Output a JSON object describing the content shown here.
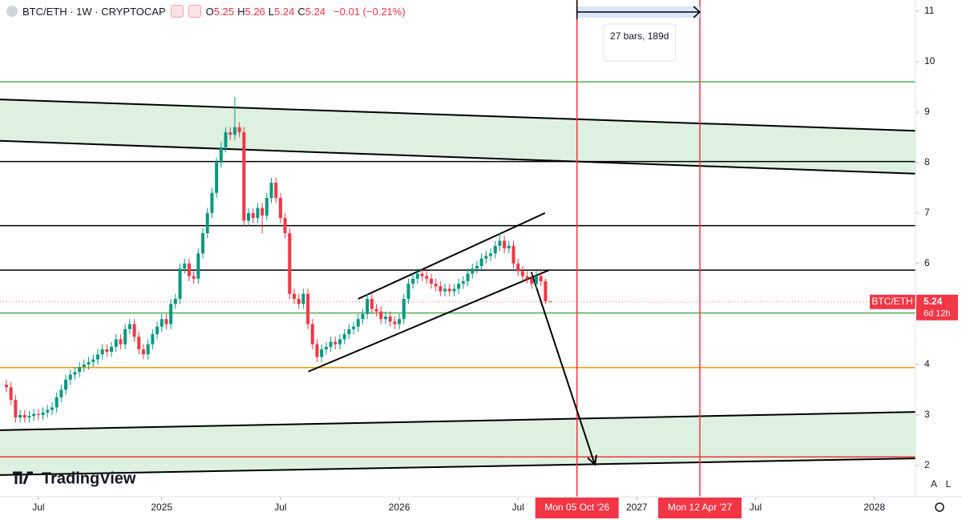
{
  "header": {
    "symbol": "BTC/ETH · 1W · CRYPTOCAP",
    "ohlc_labels": [
      "O",
      "H",
      "L",
      "C"
    ],
    "change": "−0.01 (−0.21%)"
  },
  "chart_data": {
    "type": "candlestick",
    "candles": [
      [
        3.6,
        3.7,
        3.45,
        3.55
      ],
      [
        3.55,
        3.65,
        3.2,
        3.3
      ],
      [
        3.3,
        3.4,
        2.85,
        2.95
      ],
      [
        2.95,
        3.1,
        2.85,
        3.0
      ],
      [
        3.0,
        3.1,
        2.85,
        2.95
      ],
      [
        2.95,
        3.08,
        2.85,
        2.98
      ],
      [
        2.98,
        3.12,
        2.88,
        3.02
      ],
      [
        3.02,
        3.12,
        2.9,
        3.0
      ],
      [
        3.0,
        3.15,
        2.9,
        3.05
      ],
      [
        3.05,
        3.2,
        2.95,
        3.1
      ],
      [
        3.1,
        3.25,
        3.0,
        3.15
      ],
      [
        3.15,
        3.45,
        3.05,
        3.35
      ],
      [
        3.35,
        3.6,
        3.25,
        3.5
      ],
      [
        3.5,
        3.8,
        3.4,
        3.7
      ],
      [
        3.7,
        3.9,
        3.6,
        3.8
      ],
      [
        3.8,
        3.95,
        3.7,
        3.85
      ],
      [
        3.85,
        4.05,
        3.75,
        3.95
      ],
      [
        3.95,
        4.1,
        3.85,
        4.0
      ],
      [
        4.0,
        4.15,
        3.9,
        4.05
      ],
      [
        4.05,
        4.2,
        3.95,
        4.1
      ],
      [
        4.1,
        4.3,
        4.0,
        4.2
      ],
      [
        4.2,
        4.4,
        4.1,
        4.3
      ],
      [
        4.3,
        4.4,
        4.15,
        4.25
      ],
      [
        4.25,
        4.45,
        4.15,
        4.35
      ],
      [
        4.35,
        4.6,
        4.25,
        4.5
      ],
      [
        4.5,
        4.6,
        4.3,
        4.4
      ],
      [
        4.4,
        4.8,
        4.3,
        4.7
      ],
      [
        4.7,
        4.9,
        4.6,
        4.8
      ],
      [
        4.8,
        4.9,
        4.45,
        4.55
      ],
      [
        4.55,
        4.65,
        4.2,
        4.3
      ],
      [
        4.3,
        4.4,
        4.1,
        4.2
      ],
      [
        4.2,
        4.5,
        4.1,
        4.4
      ],
      [
        4.4,
        4.7,
        4.3,
        4.6
      ],
      [
        4.6,
        4.85,
        4.5,
        4.75
      ],
      [
        4.75,
        5.0,
        4.65,
        4.9
      ],
      [
        4.9,
        5.0,
        4.7,
        4.8
      ],
      [
        4.8,
        5.3,
        4.7,
        5.2
      ],
      [
        5.2,
        5.4,
        5.1,
        5.3
      ],
      [
        5.3,
        6.0,
        5.2,
        5.9
      ],
      [
        5.9,
        6.1,
        5.8,
        6.0
      ],
      [
        6.0,
        6.1,
        5.65,
        5.75
      ],
      [
        5.75,
        5.85,
        5.6,
        5.7
      ],
      [
        5.7,
        6.3,
        5.6,
        6.2
      ],
      [
        6.2,
        6.7,
        6.1,
        6.6
      ],
      [
        6.6,
        7.1,
        6.5,
        7.0
      ],
      [
        7.0,
        7.5,
        6.9,
        7.4
      ],
      [
        7.4,
        8.1,
        7.3,
        8.0
      ],
      [
        8.0,
        8.4,
        7.9,
        8.3
      ],
      [
        8.3,
        8.7,
        8.2,
        8.6
      ],
      [
        8.6,
        8.7,
        8.45,
        8.55
      ],
      [
        8.55,
        9.3,
        8.45,
        8.7
      ],
      [
        8.7,
        8.8,
        8.5,
        8.6
      ],
      [
        8.6,
        8.7,
        6.75,
        6.85
      ],
      [
        6.85,
        7.1,
        6.75,
        7.0
      ],
      [
        7.0,
        7.1,
        6.8,
        6.9
      ],
      [
        6.9,
        7.2,
        6.8,
        7.1
      ],
      [
        7.1,
        7.2,
        6.6,
        6.95
      ],
      [
        6.95,
        7.4,
        6.85,
        7.3
      ],
      [
        7.3,
        7.7,
        7.2,
        7.6
      ],
      [
        7.6,
        7.7,
        7.2,
        7.3
      ],
      [
        7.3,
        7.4,
        6.8,
        6.9
      ],
      [
        6.9,
        7.0,
        6.5,
        6.6
      ],
      [
        6.6,
        6.7,
        5.3,
        5.4
      ],
      [
        5.4,
        5.5,
        5.2,
        5.3
      ],
      [
        5.3,
        5.4,
        5.1,
        5.2
      ],
      [
        5.2,
        5.5,
        5.1,
        5.4
      ],
      [
        5.4,
        5.5,
        4.7,
        4.8
      ],
      [
        4.8,
        4.9,
        4.3,
        4.4
      ],
      [
        4.4,
        4.5,
        4.05,
        4.15
      ],
      [
        4.15,
        4.4,
        4.05,
        4.3
      ],
      [
        4.3,
        4.45,
        4.2,
        4.35
      ],
      [
        4.35,
        4.55,
        4.25,
        4.45
      ],
      [
        4.45,
        4.55,
        4.3,
        4.4
      ],
      [
        4.4,
        4.6,
        4.3,
        4.5
      ],
      [
        4.5,
        4.7,
        4.4,
        4.6
      ],
      [
        4.6,
        4.8,
        4.5,
        4.7
      ],
      [
        4.7,
        4.85,
        4.6,
        4.75
      ],
      [
        4.75,
        5.0,
        4.65,
        4.9
      ],
      [
        4.9,
        5.1,
        4.8,
        5.0
      ],
      [
        5.0,
        5.4,
        4.9,
        5.3
      ],
      [
        5.3,
        5.4,
        5.0,
        5.1
      ],
      [
        5.1,
        5.2,
        4.95,
        5.05
      ],
      [
        5.05,
        5.15,
        4.8,
        4.9
      ],
      [
        4.9,
        5.05,
        4.8,
        4.95
      ],
      [
        4.95,
        5.05,
        4.75,
        4.85
      ],
      [
        4.85,
        4.95,
        4.7,
        4.8
      ],
      [
        4.8,
        5.0,
        4.7,
        4.9
      ],
      [
        4.9,
        5.4,
        4.8,
        5.3
      ],
      [
        5.3,
        5.7,
        5.2,
        5.6
      ],
      [
        5.6,
        5.8,
        5.5,
        5.7
      ],
      [
        5.7,
        5.9,
        5.6,
        5.8
      ],
      [
        5.8,
        5.9,
        5.65,
        5.75
      ],
      [
        5.75,
        5.85,
        5.6,
        5.7
      ],
      [
        5.7,
        5.8,
        5.5,
        5.6
      ],
      [
        5.6,
        5.7,
        5.45,
        5.55
      ],
      [
        5.55,
        5.65,
        5.35,
        5.45
      ],
      [
        5.45,
        5.6,
        5.35,
        5.5
      ],
      [
        5.5,
        5.6,
        5.35,
        5.45
      ],
      [
        5.45,
        5.6,
        5.35,
        5.5
      ],
      [
        5.5,
        5.7,
        5.4,
        5.6
      ],
      [
        5.6,
        5.75,
        5.5,
        5.65
      ],
      [
        5.65,
        5.9,
        5.55,
        5.8
      ],
      [
        5.8,
        6.0,
        5.7,
        5.9
      ],
      [
        5.9,
        6.05,
        5.8,
        5.95
      ],
      [
        5.95,
        6.2,
        5.85,
        6.1
      ],
      [
        6.1,
        6.25,
        6.0,
        6.15
      ],
      [
        6.15,
        6.3,
        6.05,
        6.2
      ],
      [
        6.2,
        6.45,
        6.1,
        6.35
      ],
      [
        6.35,
        6.6,
        6.25,
        6.45
      ],
      [
        6.45,
        6.55,
        6.2,
        6.3
      ],
      [
        6.3,
        6.45,
        6.2,
        6.35
      ],
      [
        6.35,
        6.45,
        5.9,
        6.0
      ],
      [
        6.0,
        6.1,
        5.75,
        5.85
      ],
      [
        5.85,
        5.95,
        5.65,
        5.75
      ],
      [
        5.75,
        5.85,
        5.6,
        5.7
      ],
      [
        5.7,
        5.8,
        5.5,
        5.6
      ],
      [
        5.6,
        5.85,
        5.5,
        5.75
      ],
      [
        5.75,
        5.85,
        5.55,
        5.65
      ],
      [
        5.65,
        5.7,
        5.2,
        5.25
      ],
      [
        5.25,
        5.26,
        5.24,
        5.24
      ]
    ],
    "up_color": "#089981",
    "down_color": "#f23645",
    "xlim": [
      -1.4,
      199
    ],
    "ylim": [
      1.38,
      11.22
    ],
    "xticks": [
      {
        "value": 7,
        "label": "Jul"
      },
      {
        "value": 34,
        "label": "2025"
      },
      {
        "value": 60,
        "label": "Jul"
      },
      {
        "value": 86,
        "label": "2026"
      },
      {
        "value": 112,
        "label": "Jul"
      },
      {
        "value": 138,
        "label": "2027"
      },
      {
        "value": 164,
        "label": "Jul"
      },
      {
        "value": 190,
        "label": "2028"
      }
    ],
    "yticks": [
      2,
      3,
      4,
      6,
      7,
      8,
      9,
      10,
      11
    ],
    "last_price": {
      "name": "BTC/ETH",
      "value": 5.24,
      "countdown": "6d 12h",
      "color": "#f23645"
    },
    "hlines": [
      {
        "value": 9.6,
        "color": "#4caf50"
      },
      {
        "value": 8.02,
        "color": "#000000"
      },
      {
        "value": 6.75,
        "color": "#000000"
      },
      {
        "value": 5.87,
        "color": "#000000"
      },
      {
        "value": 5.02,
        "color": "#4caf50"
      },
      {
        "value": 3.94,
        "color": "#ff9800"
      },
      {
        "value": 2.17,
        "color": "#e53935"
      }
    ],
    "bands": [
      {
        "x": [
          -1.4,
          199
        ],
        "top": [
          9.25,
          8.63
        ],
        "bottom": [
          8.43,
          7.78
        ],
        "fill": "#c8e6c9"
      },
      {
        "x": [
          -1.4,
          199
        ],
        "top": [
          2.7,
          3.06
        ],
        "bottom": [
          1.81,
          2.14
        ],
        "fill": "#c8e6c9"
      }
    ],
    "trendlines": [
      {
        "x": [
          77,
          117.9
        ],
        "y": [
          5.3,
          7.0
        ]
      },
      {
        "x": [
          66.1,
          118.8
        ],
        "y": [
          3.86,
          5.87
        ]
      },
      {
        "x": [
          114.9,
          128.8
        ],
        "y": [
          5.83,
          2.02
        ],
        "arrow": true
      }
    ],
    "vlines": [
      {
        "value": 124.9,
        "label": "Mon 05 Oct '26"
      },
      {
        "value": 151.8,
        "label": "Mon 12 Apr '27"
      }
    ],
    "range_measure": "27 bars, 189d"
  },
  "branding": "TradingView",
  "buttons": [
    "A",
    "L"
  ]
}
